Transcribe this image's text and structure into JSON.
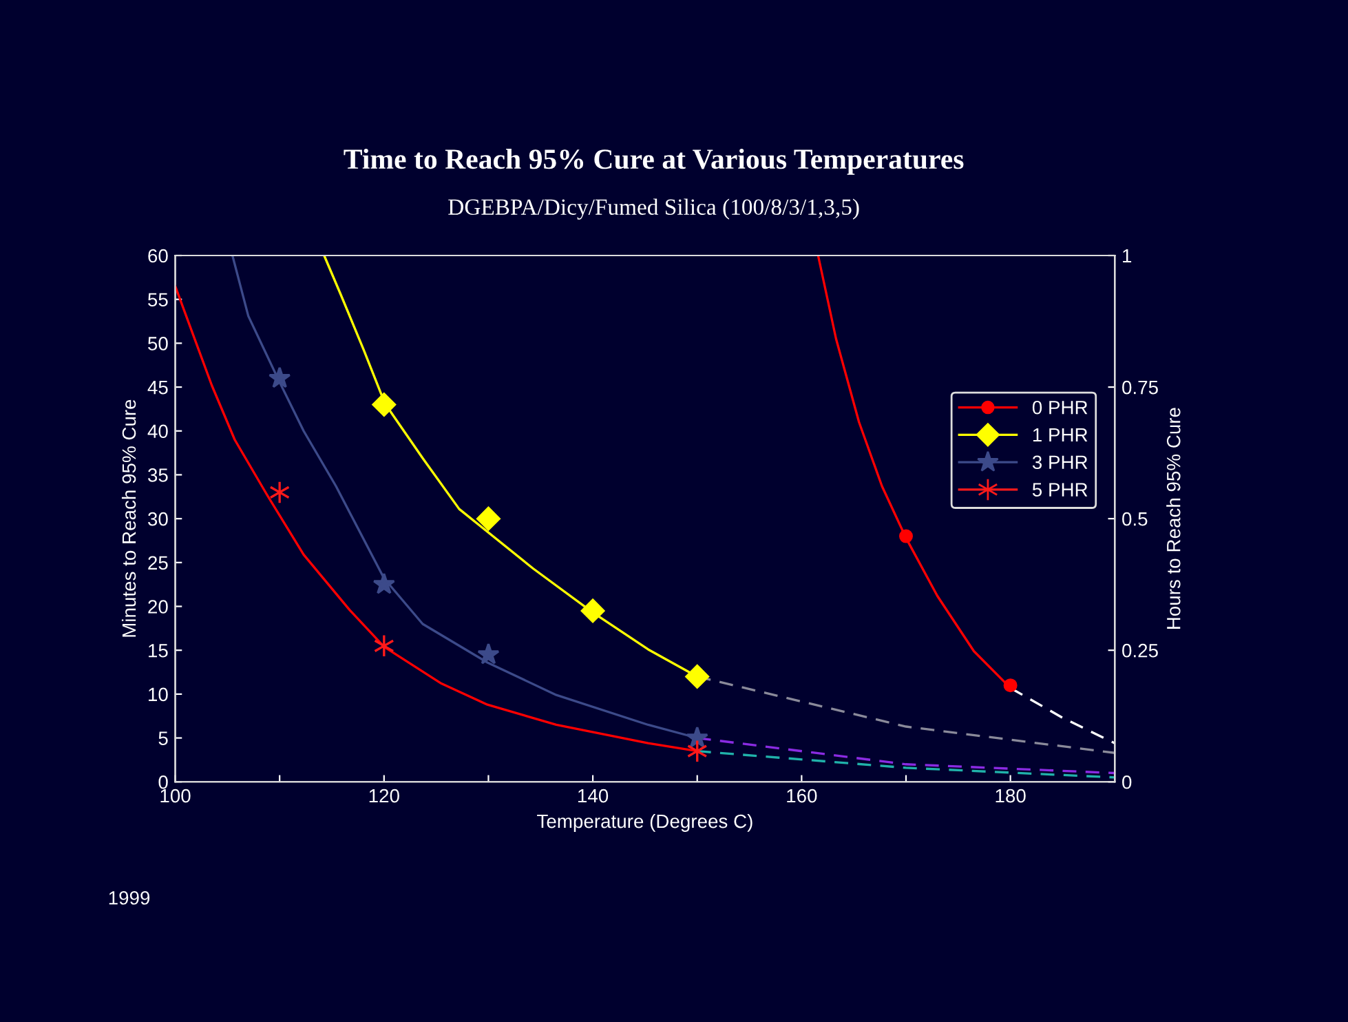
{
  "chart_data": {
    "type": "scatter",
    "title": "Time to Reach 95% Cure at Various Temperatures",
    "subtitle": "DGEBPA/Dicy/Fumed Silica (100/8/3/1,3,5)",
    "xlabel": "Temperature (Degrees C)",
    "ylabel": "Minutes to Reach 95% Cure",
    "y2label": "Hours to Reach 95% Cure",
    "xlim": [
      100,
      190
    ],
    "xticks": [
      100,
      {
        "value": 110,
        "label": null
      },
      120,
      {
        "value": 130,
        "label": null
      },
      140,
      {
        "value": 150,
        "label": null
      },
      160,
      {
        "value": 170,
        "label": null
      },
      180
    ],
    "ylim": [
      0,
      60
    ],
    "yticks": [
      0,
      5,
      10,
      15,
      20,
      25,
      30,
      35,
      40,
      45,
      50,
      55,
      60
    ],
    "y2lim": [
      0,
      1
    ],
    "y2ticks": [
      0,
      0.25,
      0.5,
      0.75,
      1
    ],
    "grid": false,
    "legend": "right",
    "annotations": [
      "1999"
    ],
    "series": [
      {
        "name": "0 PHR",
        "marker": "circle",
        "color": "#ff0000",
        "x": [
          170,
          180
        ],
        "values": [
          28,
          11
        ]
      },
      {
        "name": "1 PHR",
        "marker": "diamond",
        "color": "#ffff00",
        "x": [
          120,
          130,
          140,
          150
        ],
        "values": [
          43,
          30,
          19.5,
          12
        ]
      },
      {
        "name": "3 PHR",
        "marker": "star",
        "color": "#3c4a8a",
        "x": [
          110,
          120,
          130,
          150
        ],
        "values": [
          46,
          22.5,
          14.5,
          5
        ]
      },
      {
        "name": "5 PHR",
        "marker": "cross",
        "color": "#ff1a1a",
        "x": [
          110,
          120,
          150
        ],
        "values": [
          33,
          15.5,
          3.5
        ]
      },
      {
        "type": "line",
        "line_style": "solid",
        "color": "#ff0000",
        "x": [
          161.6,
          163.3,
          165.5,
          167.7,
          170,
          173,
          176.5,
          180
        ],
        "values": [
          59.9,
          50.5,
          41,
          33.7,
          27.8,
          21.2,
          14.9,
          10.7
        ]
      },
      {
        "type": "line",
        "line_style": "solid",
        "color": "#ffff00",
        "x": [
          114.3,
          115.8,
          118,
          120.1,
          123.7,
          127.2,
          134.3,
          140,
          145.3,
          150
        ],
        "values": [
          59.9,
          55.7,
          49.4,
          43.1,
          36.9,
          31.1,
          24.3,
          19.3,
          15.1,
          12
        ]
      },
      {
        "type": "line",
        "line_style": "solid",
        "color": "#3c4a8a",
        "x": [
          105.5,
          107,
          109.9,
          112.3,
          115.4,
          120,
          123.7,
          129.9,
          136.5,
          145.3,
          150
        ],
        "values": [
          59.9,
          53.1,
          45.8,
          40,
          33.7,
          23.2,
          18,
          13.6,
          9.9,
          6.5,
          5
        ]
      },
      {
        "type": "line",
        "line_style": "solid",
        "color": "#ff0000",
        "x": [
          100,
          103.5,
          105.7,
          108.8,
          112.3,
          116.7,
          120,
          125.5,
          129.9,
          136.5,
          145.3,
          150
        ],
        "values": [
          56.5,
          45.2,
          39,
          32.7,
          25.9,
          19.6,
          15.4,
          11.2,
          8.8,
          6.5,
          4.4,
          3.5
        ]
      },
      {
        "type": "line",
        "line_style": "dashed",
        "color": "#ffffff",
        "x": [
          180,
          185,
          190
        ],
        "values": [
          10.7,
          7.3,
          4.4
        ]
      },
      {
        "type": "line",
        "line_style": "dashed",
        "color": "#8a8a9a",
        "x": [
          150,
          170,
          190
        ],
        "values": [
          12,
          6.3,
          3.3
        ]
      },
      {
        "type": "line",
        "line_style": "dashed",
        "color": "#8a2be2",
        "x": [
          150,
          170,
          190
        ],
        "values": [
          5,
          2,
          1
        ]
      },
      {
        "type": "line",
        "line_style": "dashed",
        "color": "#20b2aa",
        "x": [
          150,
          170,
          190
        ],
        "values": [
          3.5,
          1.6,
          0.5
        ]
      }
    ]
  }
}
